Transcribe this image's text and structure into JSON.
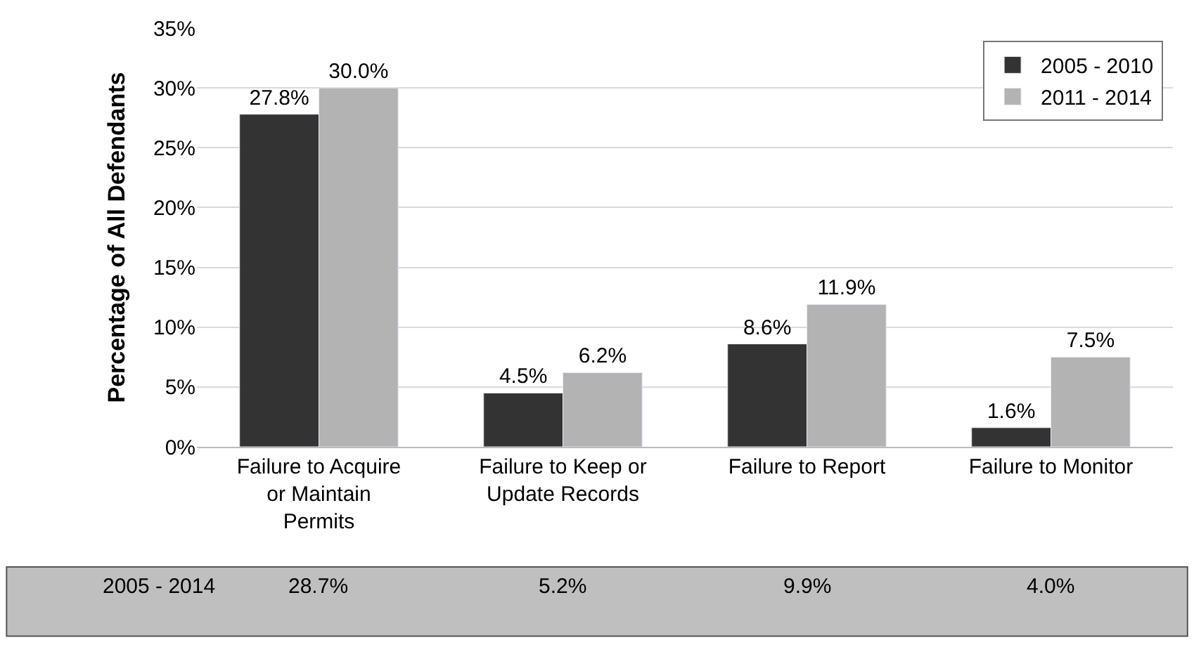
{
  "chart_data": {
    "type": "bar",
    "ylabel": "Percentage of All Defendants",
    "categories": [
      "Failure to Acquire or Maintain Permits",
      "Failure to Keep or Update Records",
      "Failure to Report",
      "Failure to Monitor"
    ],
    "series": [
      {
        "name": "2005 - 2010",
        "color": "#333333",
        "values": [
          27.8,
          4.5,
          8.6,
          1.6
        ],
        "value_labels": [
          "27.8%",
          "4.5%",
          "8.6%",
          "1.6%"
        ]
      },
      {
        "name": "2011 - 2014",
        "color": "#b3b3b3",
        "values": [
          30.0,
          6.2,
          11.9,
          7.5
        ],
        "value_labels": [
          "30.0%",
          "6.2%",
          "11.9%",
          "7.5%"
        ]
      }
    ],
    "ylim": [
      0,
      35
    ],
    "yticks": [
      {
        "value": 0,
        "label": "0%"
      },
      {
        "value": 5,
        "label": "5%"
      },
      {
        "value": 10,
        "label": "10%"
      },
      {
        "value": 15,
        "label": "15%"
      },
      {
        "value": 20,
        "label": "20%"
      },
      {
        "value": 25,
        "label": "25%"
      },
      {
        "value": 30,
        "label": "30%"
      },
      {
        "value": 35,
        "label": "35%"
      }
    ],
    "grid": "y",
    "legend": "top right",
    "annotations": [
      "2005 - 2014",
      "28.7%",
      "5.2%",
      "9.9%",
      "4.0%"
    ]
  }
}
